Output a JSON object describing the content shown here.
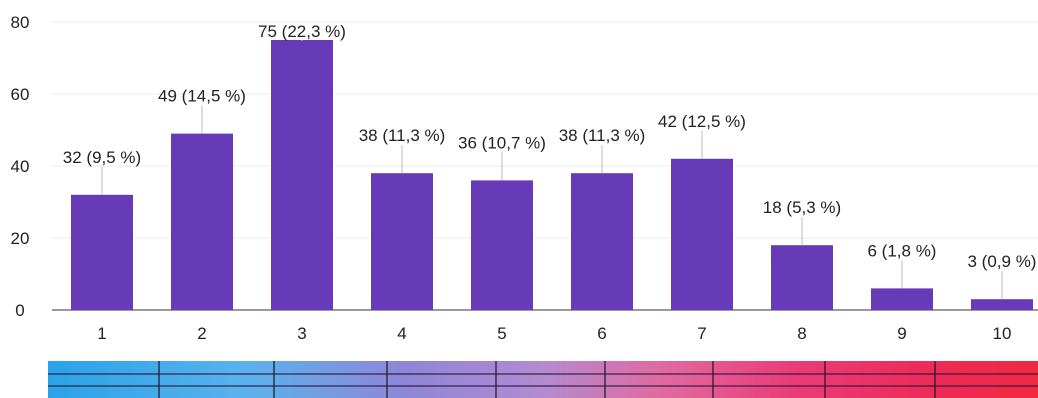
{
  "chart_data": {
    "type": "bar",
    "categories": [
      "1",
      "2",
      "3",
      "4",
      "5",
      "6",
      "7",
      "8",
      "9",
      "10"
    ],
    "values": [
      32,
      49,
      75,
      38,
      36,
      38,
      42,
      18,
      6,
      3
    ],
    "data_labels": [
      "32 (9,5 %)",
      "49 (14,5 %)",
      "75 (22,3 %)",
      "38 (11,3 %)",
      "36 (10,7 %)",
      "38 (11,3 %)",
      "42 (12,5 %)",
      "18 (5,3 %)",
      "6 (1,8 %)",
      "3 (0,9 %)"
    ],
    "y_ticks": [
      "0",
      "20",
      "40",
      "60",
      "80"
    ],
    "ylim": [
      0,
      80
    ],
    "grid": true,
    "bar_color": "#673ab7",
    "grid_color": "#eeeeee"
  },
  "colors": {
    "strip_start": "#2aa3e8",
    "strip_end": "#f02840"
  }
}
